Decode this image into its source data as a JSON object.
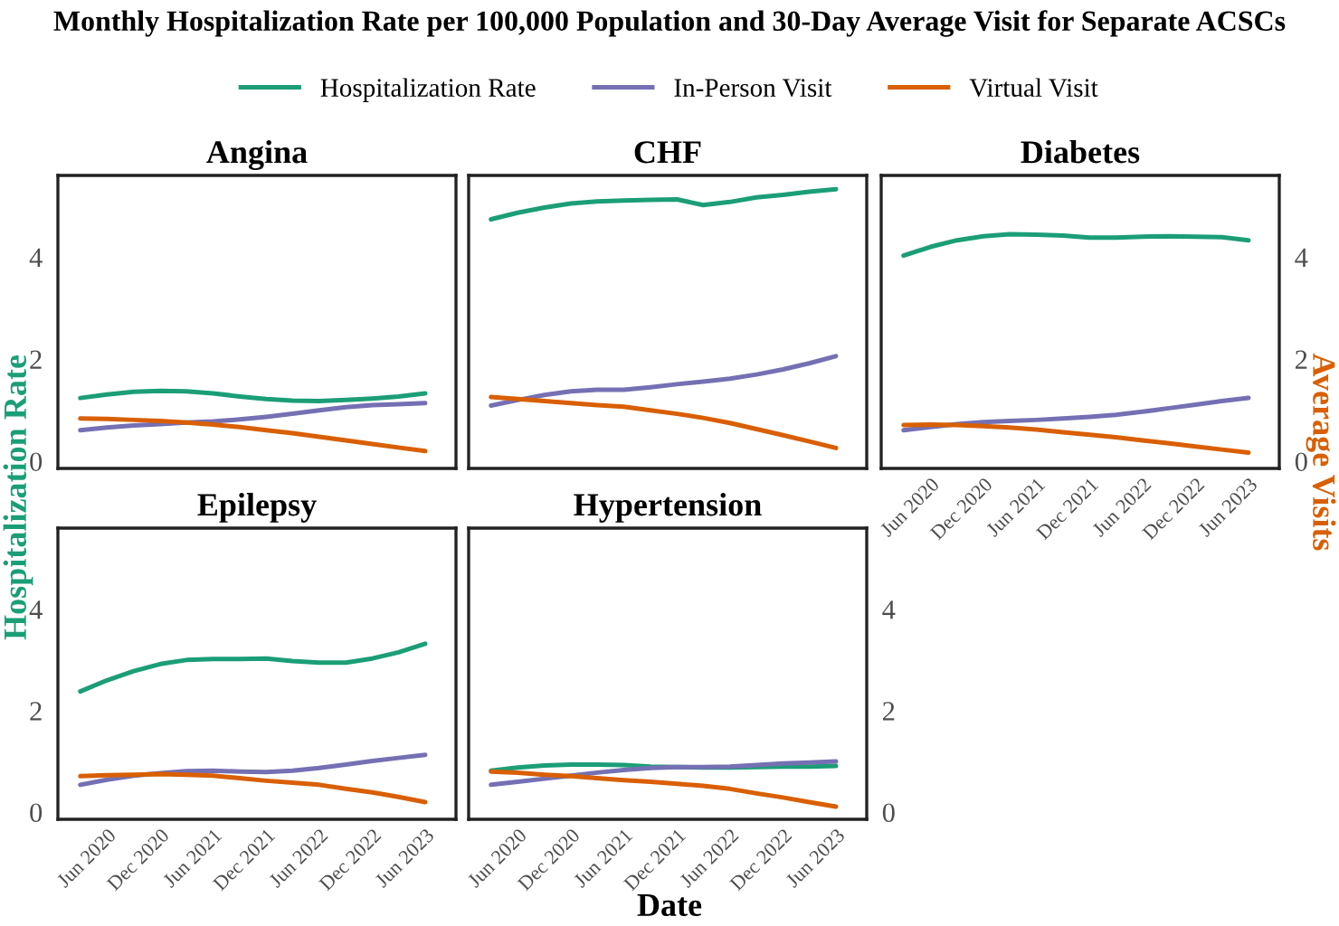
{
  "chart_data": [
    {
      "type": "line",
      "title": "Angina",
      "annotations": [
        "Monthly Hospitalization Rate per 100,000 Population and 30-Day Average Visit for Separate ACSCs"
      ],
      "ylabel": "Hospitalization Rate",
      "legend": "top",
      "tick_labels": "y",
      "x": [
        "2020-03",
        "2020-06",
        "2020-09",
        "2020-12",
        "2021-03",
        "2021-06",
        "2021-09",
        "2021-12",
        "2022-03",
        "2022-06",
        "2022-09",
        "2022-12",
        "2023-03",
        "2023-06"
      ],
      "xlim": [
        "2019-12-15",
        "2023-09-15"
      ],
      "ylim": [
        -0.14,
        5.6
      ],
      "yticks": [
        0,
        2,
        4
      ],
      "series": [
        {
          "name": "Hospitalization Rate",
          "color": "#1b9e77",
          "values": [
            1.24,
            1.31,
            1.36,
            1.38,
            1.37,
            1.33,
            1.27,
            1.22,
            1.19,
            1.18,
            1.2,
            1.23,
            1.27,
            1.33
          ]
        },
        {
          "name": "In-Person Visit",
          "color": "#7570b3",
          "values": [
            0.61,
            0.66,
            0.7,
            0.73,
            0.76,
            0.78,
            0.82,
            0.87,
            0.93,
            1.0,
            1.06,
            1.1,
            1.12,
            1.14
          ]
        },
        {
          "name": "Virtual Visit",
          "color": "#d95f02",
          "values": [
            0.84,
            0.83,
            0.81,
            0.79,
            0.76,
            0.72,
            0.67,
            0.61,
            0.55,
            0.48,
            0.41,
            0.34,
            0.27,
            0.2
          ]
        }
      ]
    },
    {
      "type": "line",
      "title": "CHF",
      "tick_labels": false,
      "x": [
        "2020-03",
        "2020-06",
        "2020-09",
        "2020-12",
        "2021-03",
        "2021-06",
        "2021-09",
        "2021-12",
        "2022-03",
        "2022-06",
        "2022-09",
        "2022-12",
        "2023-03",
        "2023-06"
      ],
      "xlim": [
        "2019-12-15",
        "2023-09-15"
      ],
      "ylim": [
        -0.14,
        5.6
      ],
      "series": [
        {
          "color": "#1b9e77",
          "values": [
            4.74,
            4.87,
            4.97,
            5.05,
            5.09,
            5.11,
            5.12,
            5.13,
            5.02,
            5.08,
            5.17,
            5.22,
            5.28,
            5.33
          ]
        },
        {
          "color": "#7570b3",
          "values": [
            1.09,
            1.2,
            1.3,
            1.37,
            1.4,
            1.4,
            1.45,
            1.51,
            1.56,
            1.62,
            1.7,
            1.8,
            1.92,
            2.06
          ]
        },
        {
          "color": "#d95f02",
          "values": [
            1.26,
            1.22,
            1.18,
            1.14,
            1.1,
            1.07,
            1.0,
            0.93,
            0.85,
            0.75,
            0.63,
            0.51,
            0.39,
            0.26
          ]
        }
      ]
    },
    {
      "type": "line",
      "title": "Diabetes",
      "ylabel": "Average Visits",
      "x": [
        "2020-03",
        "2020-06",
        "2020-09",
        "2020-12",
        "2021-03",
        "2021-06",
        "2021-09",
        "2021-12",
        "2022-03",
        "2022-06",
        "2022-09",
        "2022-12",
        "2023-03",
        "2023-06"
      ],
      "xlim": [
        "2019-12-15",
        "2023-09-15"
      ],
      "xticks": [
        {
          "value": "2020-06",
          "label": "Jun 2020"
        },
        {
          "value": "2020-12",
          "label": "Dec 2020"
        },
        {
          "value": "2021-06",
          "label": "Jun 2021"
        },
        {
          "value": "2021-12",
          "label": "Dec 2021"
        },
        {
          "value": "2022-06",
          "label": "Jun 2022"
        },
        {
          "value": "2022-12",
          "label": "Dec 2022"
        },
        {
          "value": "2023-06",
          "label": "Jun 2023"
        }
      ],
      "ylim": [
        -0.14,
        5.6
      ],
      "yticks": [
        0,
        2,
        4
      ],
      "series": [
        {
          "color": "#1b9e77",
          "values": [
            4.03,
            4.2,
            4.33,
            4.41,
            4.45,
            4.44,
            4.42,
            4.38,
            4.38,
            4.4,
            4.41,
            4.4,
            4.39,
            4.33
          ]
        },
        {
          "color": "#7570b3",
          "values": [
            0.61,
            0.67,
            0.73,
            0.77,
            0.79,
            0.81,
            0.84,
            0.87,
            0.91,
            0.97,
            1.04,
            1.11,
            1.18,
            1.24
          ]
        },
        {
          "color": "#d95f02",
          "values": [
            0.71,
            0.72,
            0.71,
            0.69,
            0.66,
            0.62,
            0.57,
            0.52,
            0.47,
            0.41,
            0.35,
            0.29,
            0.23,
            0.17
          ]
        }
      ]
    },
    {
      "type": "line",
      "title": "Epilepsy",
      "x": [
        "2020-03",
        "2020-06",
        "2020-09",
        "2020-12",
        "2021-03",
        "2021-06",
        "2021-09",
        "2021-12",
        "2022-03",
        "2022-06",
        "2022-09",
        "2022-12",
        "2023-03",
        "2023-06"
      ],
      "xlim": [
        "2019-12-15",
        "2023-09-15"
      ],
      "xticks": [
        {
          "value": "2020-06",
          "label": "Jun 2020"
        },
        {
          "value": "2020-12",
          "label": "Dec 2020"
        },
        {
          "value": "2021-06",
          "label": "Jun 2021"
        },
        {
          "value": "2021-12",
          "label": "Dec 2021"
        },
        {
          "value": "2022-06",
          "label": "Jun 2022"
        },
        {
          "value": "2022-12",
          "label": "Dec 2022"
        },
        {
          "value": "2023-06",
          "label": "Jun 2023"
        }
      ],
      "ylim": [
        -0.14,
        5.6
      ],
      "yticks": [
        0,
        2,
        4
      ],
      "series": [
        {
          "color": "#1b9e77",
          "values": [
            2.38,
            2.6,
            2.78,
            2.92,
            3.0,
            3.02,
            3.02,
            3.03,
            2.98,
            2.95,
            2.95,
            3.03,
            3.15,
            3.32
          ]
        },
        {
          "color": "#7570b3",
          "values": [
            0.54,
            0.64,
            0.72,
            0.77,
            0.81,
            0.82,
            0.8,
            0.79,
            0.82,
            0.87,
            0.94,
            1.01,
            1.07,
            1.13
          ]
        },
        {
          "color": "#d95f02",
          "values": [
            0.71,
            0.73,
            0.74,
            0.75,
            0.74,
            0.72,
            0.67,
            0.62,
            0.58,
            0.54,
            0.46,
            0.39,
            0.3,
            0.2
          ]
        }
      ]
    },
    {
      "type": "line",
      "title": "Hypertension",
      "xlabel": "Date",
      "x": [
        "2020-03",
        "2020-06",
        "2020-09",
        "2020-12",
        "2021-03",
        "2021-06",
        "2021-09",
        "2021-12",
        "2022-03",
        "2022-06",
        "2022-09",
        "2022-12",
        "2023-03",
        "2023-06"
      ],
      "xlim": [
        "2019-12-15",
        "2023-09-15"
      ],
      "xticks": [
        {
          "value": "2020-06",
          "label": "Jun 2020"
        },
        {
          "value": "2020-12",
          "label": "Dec 2020"
        },
        {
          "value": "2021-06",
          "label": "Jun 2021"
        },
        {
          "value": "2021-12",
          "label": "Dec 2021"
        },
        {
          "value": "2022-06",
          "label": "Jun 2022"
        },
        {
          "value": "2022-12",
          "label": "Dec 2022"
        },
        {
          "value": "2023-06",
          "label": "Jun 2023"
        }
      ],
      "ylim": [
        -0.14,
        5.6
      ],
      "yticks": [
        0,
        2,
        4
      ],
      "series": [
        {
          "color": "#1b9e77",
          "values": [
            0.82,
            0.88,
            0.92,
            0.94,
            0.94,
            0.93,
            0.9,
            0.89,
            0.88,
            0.88,
            0.89,
            0.9,
            0.9,
            0.91
          ]
        },
        {
          "color": "#7570b3",
          "values": [
            0.54,
            0.6,
            0.66,
            0.72,
            0.78,
            0.83,
            0.87,
            0.89,
            0.89,
            0.9,
            0.93,
            0.96,
            0.98,
            1.0
          ]
        },
        {
          "color": "#d95f02",
          "values": [
            0.8,
            0.78,
            0.74,
            0.71,
            0.67,
            0.63,
            0.6,
            0.56,
            0.52,
            0.46,
            0.37,
            0.29,
            0.2,
            0.11
          ]
        }
      ]
    }
  ]
}
